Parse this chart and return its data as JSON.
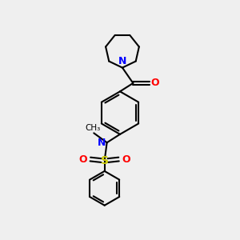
{
  "background_color": "#efefef",
  "bond_color": "#000000",
  "atom_colors": {
    "N": "#0000ff",
    "O": "#ff0000",
    "S": "#cccc00",
    "C": "#000000"
  },
  "figsize": [
    3.0,
    3.0
  ],
  "dpi": 100
}
